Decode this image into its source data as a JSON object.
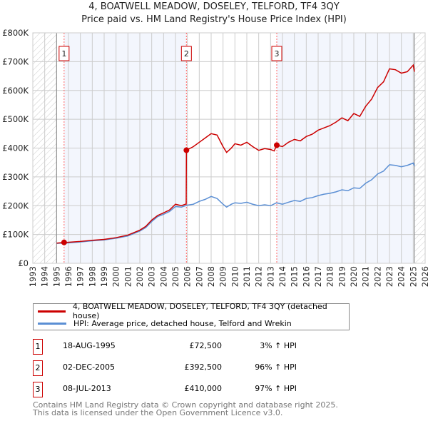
{
  "title_line1": "4, BOATWELL MEADOW, DOSELEY, TELFORD, TF4 3QY",
  "title_line2": "Price paid vs. HM Land Registry's House Price Index (HPI)",
  "chart_data": {
    "type": "line",
    "title": "4, BOATWELL MEADOW, DOSELEY, TELFORD, TF4 3QY — Price paid vs. HM Land Registry's House Price Index (HPI)",
    "xlim": [
      1993,
      2026
    ],
    "ylim": [
      0,
      800000
    ],
    "x_ticks": [
      "1993",
      "1994",
      "1995",
      "1996",
      "1997",
      "1998",
      "1999",
      "2000",
      "2001",
      "2002",
      "2003",
      "2004",
      "2005",
      "2006",
      "2007",
      "2008",
      "2009",
      "2010",
      "2011",
      "2012",
      "2013",
      "2014",
      "2015",
      "2016",
      "2017",
      "2018",
      "2019",
      "2020",
      "2021",
      "2022",
      "2023",
      "2024",
      "2025",
      "2026"
    ],
    "y_ticks": [
      {
        "v": 0,
        "label": "£0"
      },
      {
        "v": 100000,
        "label": "£100K"
      },
      {
        "v": 200000,
        "label": "£200K"
      },
      {
        "v": 300000,
        "label": "£300K"
      },
      {
        "v": 400000,
        "label": "£400K"
      },
      {
        "v": 500000,
        "label": "£500K"
      },
      {
        "v": 600000,
        "label": "£600K"
      },
      {
        "v": 700000,
        "label": "£700K"
      },
      {
        "v": 800000,
        "label": "£800K"
      }
    ],
    "grid": true,
    "series": [
      {
        "name": "4, BOATWELL MEADOW, DOSELEY, TELFORD, TF4 3QY (detached house)",
        "color": "#cc0000",
        "x": [
          1995,
          1995.63,
          1996,
          1997,
          1998,
          1999,
          2000,
          2001,
          2002,
          2002.5,
          2003,
          2003.5,
          2004,
          2004.5,
          2005,
          2005.5,
          2005.9,
          2005.92,
          2006.5,
          2007,
          2007.5,
          2008,
          2008.5,
          2009,
          2009.3,
          2009.7,
          2010,
          2010.5,
          2011,
          2011.5,
          2012,
          2012.5,
          2013,
          2013.3,
          2013.52,
          2014,
          2014.5,
          2015,
          2015.5,
          2016,
          2016.5,
          2017,
          2017.5,
          2018,
          2018.5,
          2019,
          2019.5,
          2020,
          2020.5,
          2021,
          2021.5,
          2022,
          2022.5,
          2023,
          2023.5,
          2024,
          2024.5,
          2025,
          2025.1
        ],
        "y": [
          70000,
          72500,
          73000,
          76000,
          80000,
          83000,
          89000,
          98000,
          115000,
          128000,
          150000,
          166000,
          175000,
          185000,
          205000,
          200000,
          206000,
          392500,
          405000,
          420000,
          435000,
          450000,
          445000,
          405000,
          385000,
          400000,
          415000,
          410000,
          420000,
          405000,
          392000,
          398000,
          395000,
          390000,
          410000,
          405000,
          420000,
          430000,
          425000,
          440000,
          448000,
          462000,
          470000,
          478000,
          490000,
          505000,
          495000,
          520000,
          510000,
          545000,
          570000,
          610000,
          630000,
          675000,
          672000,
          660000,
          665000,
          688000,
          665000
        ]
      },
      {
        "name": "HPI: Average price, detached house, Telford and Wrekin",
        "color": "#5b8fd4",
        "x": [
          1995,
          1996,
          1997,
          1998,
          1999,
          2000,
          2001,
          2002,
          2002.5,
          2003,
          2003.5,
          2004,
          2004.5,
          2005,
          2005.5,
          2006,
          2006.5,
          2007,
          2007.5,
          2008,
          2008.5,
          2009,
          2009.3,
          2009.7,
          2010,
          2010.5,
          2011,
          2011.5,
          2012,
          2012.5,
          2013,
          2013.5,
          2014,
          2014.5,
          2015,
          2015.5,
          2016,
          2016.5,
          2017,
          2017.5,
          2018,
          2018.5,
          2019,
          2019.5,
          2020,
          2020.5,
          2021,
          2021.5,
          2022,
          2022.5,
          2023,
          2023.5,
          2024,
          2024.5,
          2025,
          2025.1
        ],
        "y": [
          69000,
          71000,
          74000,
          78000,
          81000,
          87000,
          95000,
          112000,
          124000,
          145000,
          162000,
          170000,
          180000,
          197000,
          195000,
          202000,
          205000,
          215000,
          222000,
          232000,
          225000,
          205000,
          195000,
          205000,
          210000,
          208000,
          212000,
          205000,
          200000,
          203000,
          200000,
          210000,
          205000,
          212000,
          218000,
          215000,
          225000,
          228000,
          235000,
          240000,
          243000,
          248000,
          255000,
          252000,
          262000,
          260000,
          278000,
          290000,
          310000,
          320000,
          342000,
          340000,
          335000,
          340000,
          348000,
          338000
        ]
      }
    ],
    "sales": [
      {
        "n": "1",
        "x": 1995.63,
        "date": "18-AUG-1995",
        "price": "£72,500",
        "value": 72500,
        "hpi": "3% ↑ HPI"
      },
      {
        "n": "2",
        "x": 2005.92,
        "date": "02-DEC-2005",
        "price": "£392,500",
        "value": 392500,
        "hpi": "96% ↑ HPI"
      },
      {
        "n": "3",
        "x": 2013.52,
        "date": "08-JUL-2013",
        "price": "£410,000",
        "value": 410000,
        "hpi": "97% ↑ HPI"
      }
    ],
    "hatched_before": 1995,
    "hatched_after": 2025.1,
    "legend_position": "below"
  },
  "footer_line1": "Contains HM Land Registry data © Crown copyright and database right 2025.",
  "footer_line2": "This data is licensed under the Open Government Licence v3.0."
}
